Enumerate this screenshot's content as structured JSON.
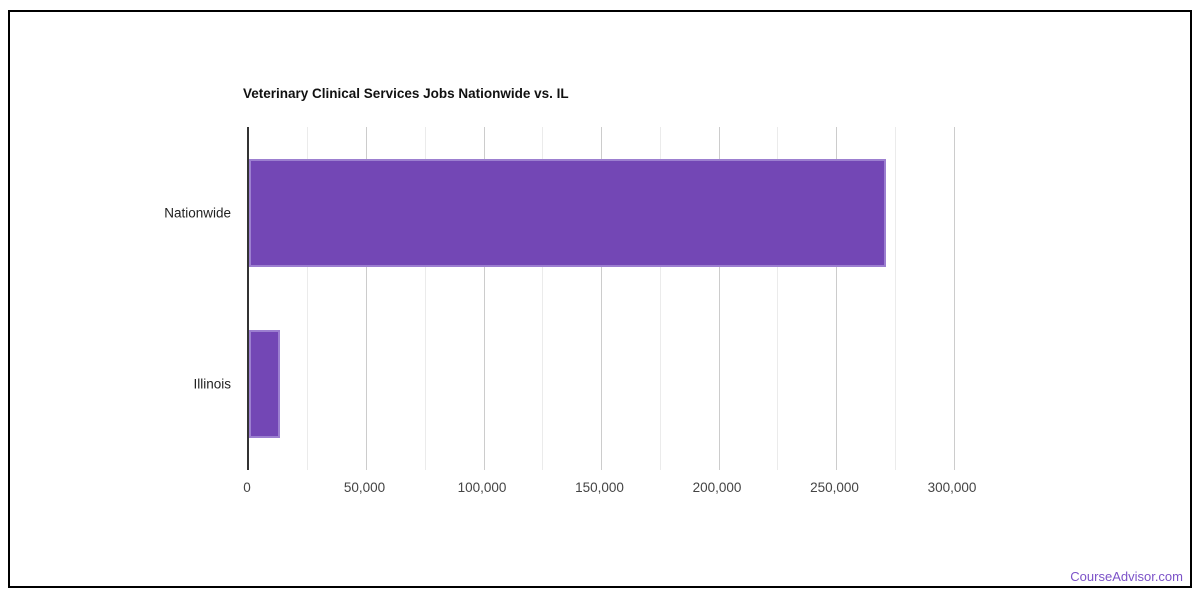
{
  "page": {
    "watermark_label": "CourseAdvisor.com",
    "watermark_color": "#7c52c8",
    "frame_color": "#000000",
    "background_color": "#ffffff"
  },
  "chart_data": {
    "type": "bar",
    "orientation": "horizontal",
    "title": "Veterinary Clinical Services Jobs Nationwide vs. IL",
    "categories": [
      "Nationwide",
      "Illinois"
    ],
    "values": [
      271000,
      13000
    ],
    "xlabel": "",
    "ylabel": "",
    "xlim": [
      0,
      300000
    ],
    "x_major_step": 50000,
    "x_minor_step": 25000,
    "x_tick_labels": [
      "0",
      "50,000",
      "100,000",
      "150,000",
      "200,000",
      "250,000",
      "300,000"
    ],
    "grid": true,
    "legend": "none",
    "bar_color": "#7347b5",
    "bar_border_color": "#9c7fd0",
    "axis_line_color": "#333333",
    "major_gridline_color": "#cccccc",
    "minor_gridline_color": "#ebebeb"
  }
}
